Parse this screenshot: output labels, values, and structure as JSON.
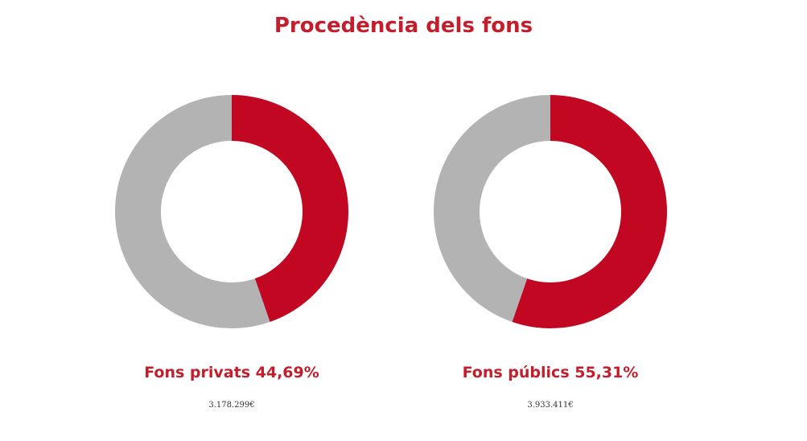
{
  "title": "Procedència dels fons",
  "colors": {
    "accent": "#c10722",
    "rest": "#b3b3b3",
    "title": "#c21e2c"
  },
  "chart_data": [
    {
      "type": "pie",
      "donut": true,
      "label": "Fons privats 44,69%",
      "amount": "3.178.299€",
      "values": [
        44.69,
        55.31
      ],
      "highlight_index": 0
    },
    {
      "type": "pie",
      "donut": true,
      "label": "Fons públics 55,31%",
      "amount": "3.933.411€",
      "values": [
        55.31,
        44.69
      ],
      "highlight_index": 0
    }
  ]
}
